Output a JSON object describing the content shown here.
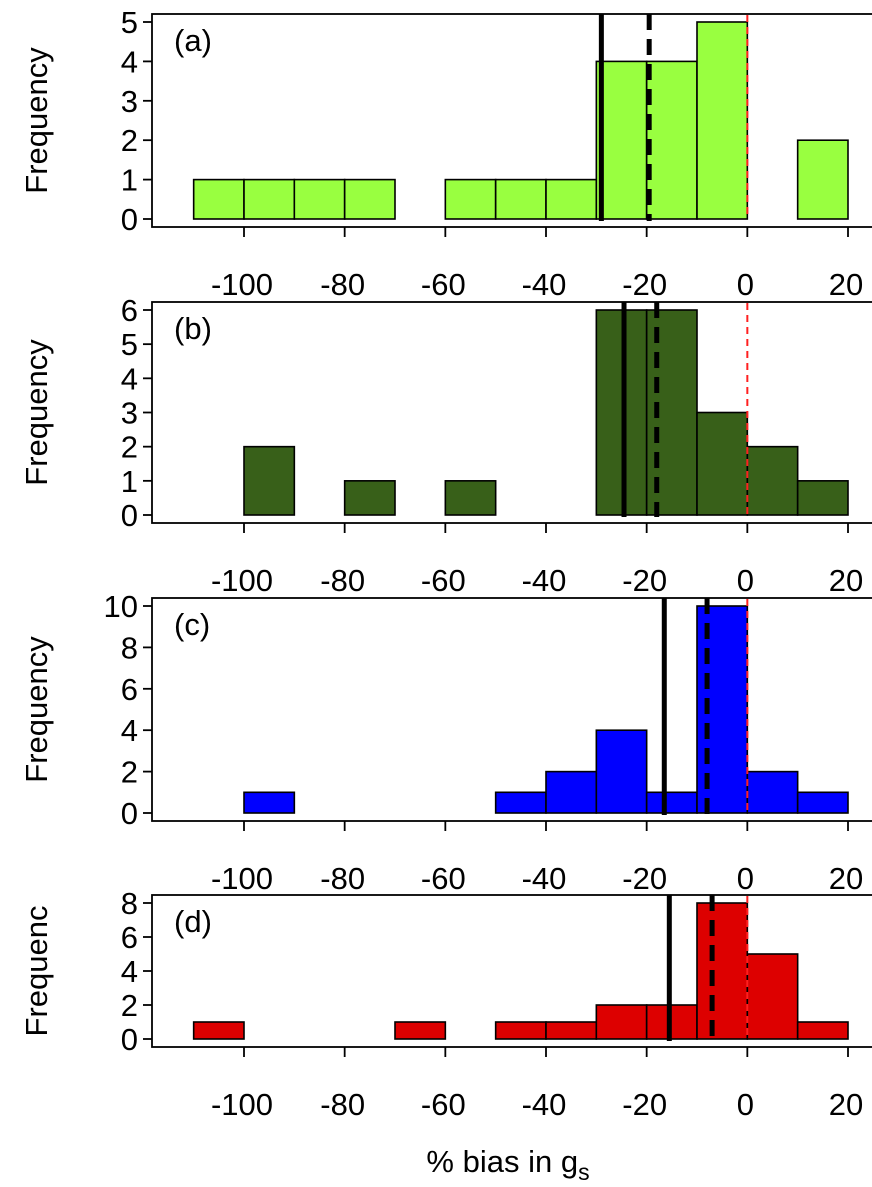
{
  "xlabel": "% bias in g",
  "xlabel_subscript": "s",
  "chart_data": [
    {
      "type": "bar",
      "panel_label": "(a)",
      "ylabel": "Frequency",
      "color": "#99ff40",
      "xlim": [
        -112,
        25
      ],
      "ylim": [
        0,
        5
      ],
      "yticks": [
        0,
        1,
        2,
        3,
        4,
        5
      ],
      "xticks": [
        -100,
        -80,
        -60,
        -40,
        -20,
        0,
        20
      ],
      "bins": [
        {
          "x0": -110,
          "x1": -100,
          "count": 1
        },
        {
          "x0": -100,
          "x1": -90,
          "count": 1
        },
        {
          "x0": -90,
          "x1": -80,
          "count": 1
        },
        {
          "x0": -80,
          "x1": -70,
          "count": 1
        },
        {
          "x0": -70,
          "x1": -60,
          "count": 0
        },
        {
          "x0": -60,
          "x1": -50,
          "count": 1
        },
        {
          "x0": -50,
          "x1": -40,
          "count": 1
        },
        {
          "x0": -40,
          "x1": -30,
          "count": 1
        },
        {
          "x0": -30,
          "x1": -20,
          "count": 4
        },
        {
          "x0": -20,
          "x1": -10,
          "count": 4
        },
        {
          "x0": -10,
          "x1": 0,
          "count": 5
        },
        {
          "x0": 0,
          "x1": 10,
          "count": 0
        },
        {
          "x0": 10,
          "x1": 20,
          "count": 2
        }
      ],
      "mean": -29,
      "median": -19.5,
      "zero_line": 0
    },
    {
      "type": "bar",
      "panel_label": "(b)",
      "ylabel": "Frequency",
      "color": "#386019",
      "xlim": [
        -112,
        25
      ],
      "ylim": [
        0,
        6
      ],
      "yticks": [
        0,
        1,
        2,
        3,
        4,
        5,
        6
      ],
      "xticks": [
        -100,
        -80,
        -60,
        -40,
        -20,
        0,
        20
      ],
      "bins": [
        {
          "x0": -100,
          "x1": -90,
          "count": 2
        },
        {
          "x0": -90,
          "x1": -80,
          "count": 0
        },
        {
          "x0": -80,
          "x1": -70,
          "count": 1
        },
        {
          "x0": -70,
          "x1": -60,
          "count": 0
        },
        {
          "x0": -60,
          "x1": -50,
          "count": 1
        },
        {
          "x0": -50,
          "x1": -40,
          "count": 0
        },
        {
          "x0": -40,
          "x1": -30,
          "count": 0
        },
        {
          "x0": -30,
          "x1": -20,
          "count": 6
        },
        {
          "x0": -20,
          "x1": -10,
          "count": 6
        },
        {
          "x0": -10,
          "x1": 0,
          "count": 3
        },
        {
          "x0": 0,
          "x1": 10,
          "count": 2
        },
        {
          "x0": 10,
          "x1": 20,
          "count": 1
        }
      ],
      "mean": -24.5,
      "median": -18,
      "zero_line": 0
    },
    {
      "type": "bar",
      "panel_label": "(c)",
      "ylabel": "Frequency",
      "color": "#0000ff",
      "xlim": [
        -112,
        25
      ],
      "ylim": [
        0,
        10
      ],
      "yticks": [
        0,
        2,
        4,
        6,
        8,
        10
      ],
      "xticks": [
        -100,
        -80,
        -60,
        -40,
        -20,
        0,
        20
      ],
      "bins": [
        {
          "x0": -100,
          "x1": -90,
          "count": 1
        },
        {
          "x0": -90,
          "x1": -80,
          "count": 0
        },
        {
          "x0": -80,
          "x1": -70,
          "count": 0
        },
        {
          "x0": -70,
          "x1": -60,
          "count": 0
        },
        {
          "x0": -60,
          "x1": -50,
          "count": 0
        },
        {
          "x0": -50,
          "x1": -40,
          "count": 1
        },
        {
          "x0": -40,
          "x1": -30,
          "count": 2
        },
        {
          "x0": -30,
          "x1": -20,
          "count": 4
        },
        {
          "x0": -20,
          "x1": -10,
          "count": 1
        },
        {
          "x0": -10,
          "x1": 0,
          "count": 10
        },
        {
          "x0": 0,
          "x1": 10,
          "count": 2
        },
        {
          "x0": 10,
          "x1": 20,
          "count": 1
        }
      ],
      "mean": -16.5,
      "median": -8,
      "zero_line": 0
    },
    {
      "type": "bar",
      "panel_label": "(d)",
      "ylabel": "Frequenc",
      "color": "#dd0000",
      "xlim": [
        -112,
        25
      ],
      "ylim": [
        0,
        8
      ],
      "yticks": [
        0,
        2,
        4,
        6,
        8
      ],
      "xticks": [
        -100,
        -80,
        -60,
        -40,
        -20,
        0,
        20
      ],
      "bins": [
        {
          "x0": -110,
          "x1": -100,
          "count": 1
        },
        {
          "x0": -100,
          "x1": -90,
          "count": 0
        },
        {
          "x0": -90,
          "x1": -80,
          "count": 0
        },
        {
          "x0": -80,
          "x1": -70,
          "count": 0
        },
        {
          "x0": -70,
          "x1": -60,
          "count": 1
        },
        {
          "x0": -60,
          "x1": -50,
          "count": 0
        },
        {
          "x0": -50,
          "x1": -40,
          "count": 1
        },
        {
          "x0": -40,
          "x1": -30,
          "count": 1
        },
        {
          "x0": -30,
          "x1": -20,
          "count": 2
        },
        {
          "x0": -20,
          "x1": -10,
          "count": 2
        },
        {
          "x0": -10,
          "x1": 0,
          "count": 8
        },
        {
          "x0": 0,
          "x1": 10,
          "count": 5
        },
        {
          "x0": 10,
          "x1": 20,
          "count": 1
        }
      ],
      "mean": -15.5,
      "median": -7,
      "zero_line": 0
    }
  ]
}
